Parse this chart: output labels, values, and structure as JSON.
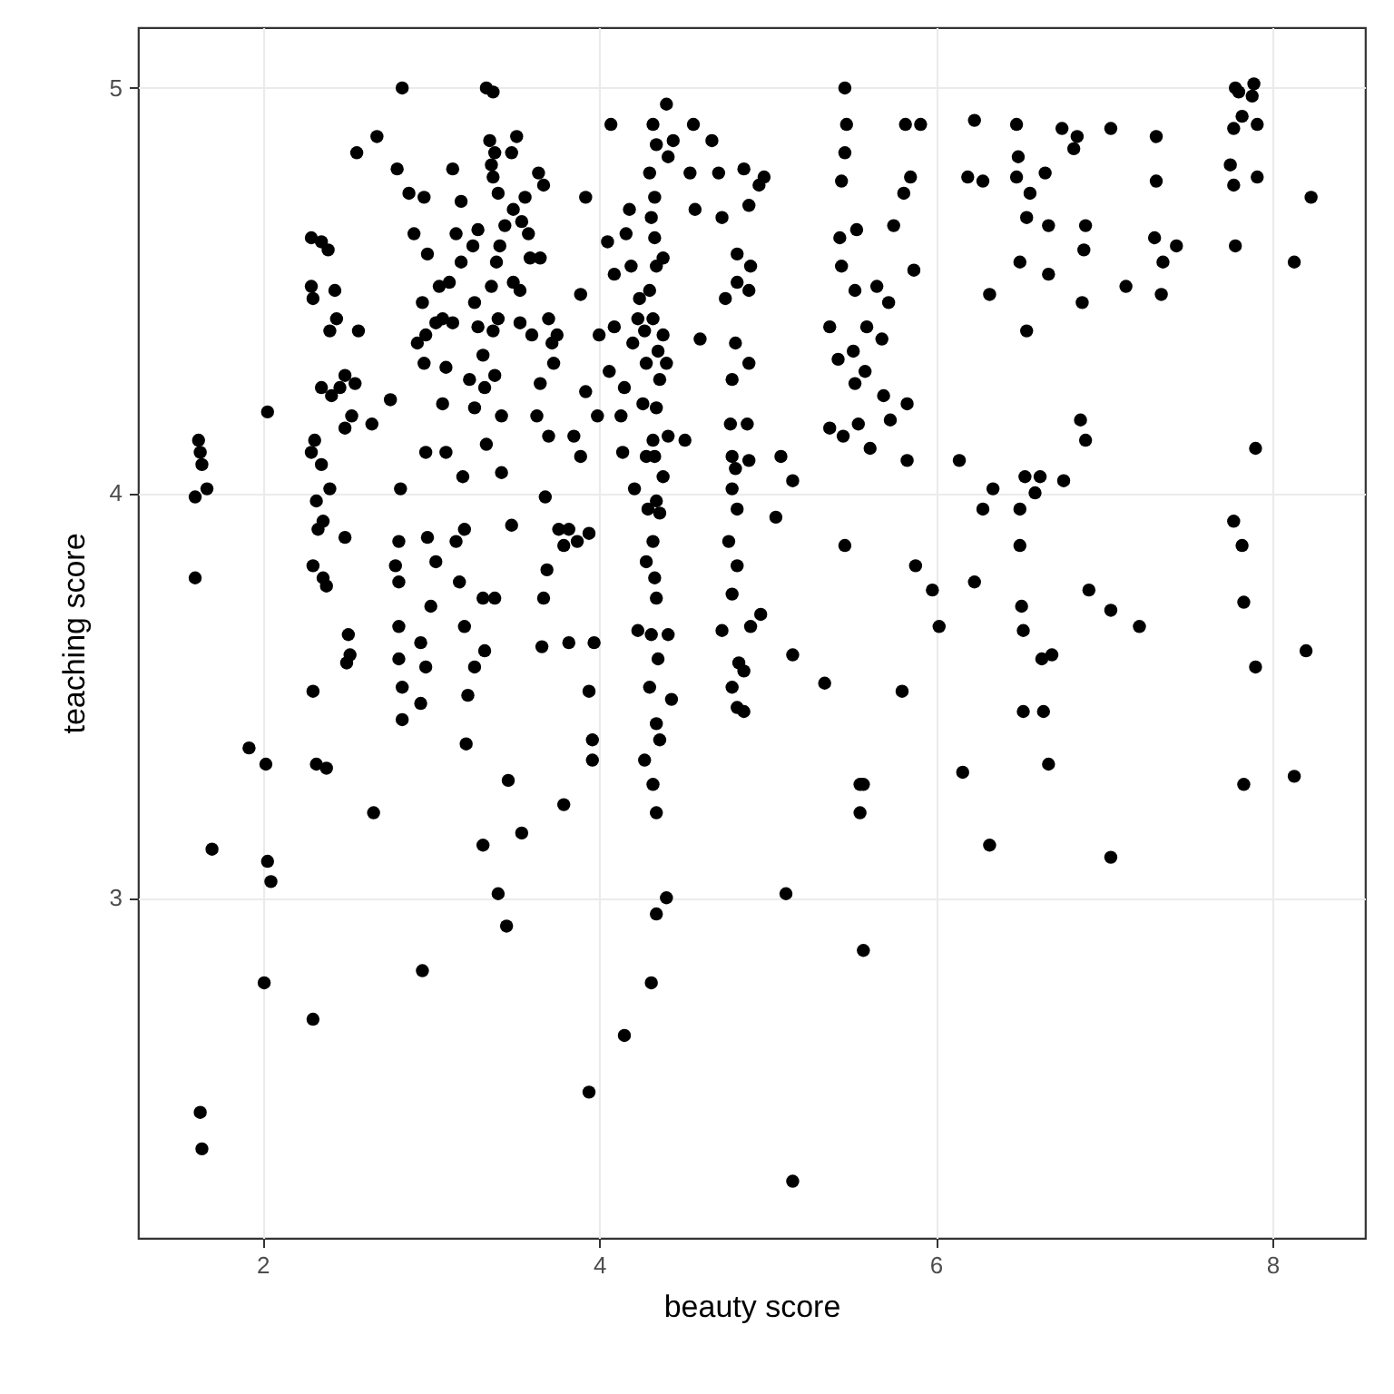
{
  "chart_data": {
    "type": "scatter",
    "xlabel": "beauty score",
    "ylabel": "teaching score",
    "xlim": [
      1.26,
      8.55
    ],
    "ylim": [
      2.16,
      5.15
    ],
    "xticks": [
      2,
      4,
      6,
      8
    ],
    "yticks": [
      3,
      4,
      5
    ],
    "grid": true,
    "marker": "circle",
    "series": [
      {
        "color": "#000000",
        "x": [
          1.62,
          1.63,
          1.64,
          1.67,
          1.6,
          1.6,
          1.7,
          1.63,
          1.64,
          1.92,
          2.02,
          2.01,
          2.03,
          2.05,
          2.03,
          2.29,
          2.35,
          2.29,
          2.3,
          2.39,
          2.35,
          2.41,
          2.31,
          2.29,
          2.35,
          2.32,
          2.4,
          2.36,
          2.33,
          2.3,
          2.36,
          2.38,
          2.3,
          2.3,
          2.32,
          2.38,
          2.4,
          2.43,
          2.44,
          2.49,
          2.46,
          2.55,
          2.53,
          2.49,
          2.49,
          2.52,
          2.5,
          2.51,
          2.56,
          2.65,
          2.66,
          2.68,
          2.76,
          2.57,
          2.79,
          2.81,
          2.81,
          2.82,
          2.81,
          2.83,
          2.83,
          2.81,
          2.83,
          2.8,
          2.9,
          2.87,
          2.92,
          2.94,
          2.95,
          2.94,
          2.97,
          2.96,
          2.98,
          2.95,
          2.97,
          2.96,
          2.97,
          2.98,
          3.0,
          3.03,
          3.03,
          3.07,
          3.07,
          3.05,
          3.09,
          3.11,
          3.13,
          3.18,
          3.15,
          3.18,
          3.13,
          3.15,
          3.17,
          3.2,
          3.22,
          3.21,
          3.09,
          3.25,
          3.26,
          3.23,
          3.26,
          3.19,
          3.2,
          3.28,
          3.31,
          3.32,
          3.33,
          3.31,
          3.32,
          3.26,
          3.31,
          3.28,
          3.33,
          3.37,
          3.35,
          3.38,
          3.36,
          3.37,
          3.4,
          3.44,
          3.41,
          3.39,
          3.36,
          3.4,
          3.37,
          3.38,
          3.42,
          3.42,
          3.38,
          3.4,
          3.45,
          3.46,
          3.48,
          3.48,
          3.49,
          3.49,
          3.51,
          3.54,
          3.53,
          3.53,
          3.54,
          3.58,
          3.59,
          3.6,
          3.65,
          3.63,
          3.56,
          3.64,
          3.67,
          3.65,
          3.69,
          3.67,
          3.7,
          3.68,
          3.66,
          3.7,
          3.72,
          3.73,
          3.76,
          3.79,
          3.75,
          3.82,
          3.82,
          3.87,
          3.79,
          3.85,
          3.89,
          3.89,
          3.92,
          3.92,
          3.94,
          3.96,
          3.96,
          3.94,
          3.99,
          3.97,
          4.0,
          4.07,
          4.05,
          4.09,
          4.09,
          4.06,
          4.15,
          4.13,
          4.14,
          4.18,
          4.16,
          4.19,
          4.2,
          4.21,
          4.24,
          4.23,
          4.27,
          4.28,
          4.23,
          4.26,
          4.28,
          4.29,
          4.28,
          4.15,
          4.27,
          3.94,
          4.32,
          4.34,
          4.3,
          4.33,
          4.31,
          4.33,
          4.34,
          4.3,
          4.32,
          4.35,
          4.36,
          4.34,
          4.32,
          4.33,
          4.34,
          4.36,
          4.32,
          4.33,
          4.34,
          4.31,
          4.35,
          4.3,
          4.34,
          4.36,
          4.32,
          4.34,
          4.34,
          4.31,
          4.4,
          4.4,
          4.41,
          4.38,
          4.38,
          4.4,
          4.41,
          4.38,
          4.41,
          4.43,
          4.44,
          4.56,
          4.54,
          4.57,
          4.51,
          4.6,
          4.67,
          4.71,
          4.73,
          4.73,
          4.75,
          4.77,
          4.79,
          4.79,
          4.82,
          4.82,
          4.81,
          4.79,
          4.78,
          4.81,
          4.82,
          4.82,
          4.79,
          4.83,
          4.79,
          4.82,
          4.86,
          4.89,
          4.9,
          4.89,
          4.89,
          4.88,
          4.89,
          4.9,
          4.86,
          4.95,
          4.98,
          4.96,
          4.86,
          5.05,
          5.08,
          5.15,
          5.11,
          5.15,
          5.15,
          5.34,
          5.37,
          5.37,
          5.42,
          5.43,
          5.44,
          5.45,
          5.46,
          5.44,
          5.46,
          5.47,
          5.46,
          5.51,
          5.52,
          5.52,
          5.53,
          5.55,
          5.55,
          5.54,
          5.57,
          5.57,
          5.58,
          5.59,
          5.61,
          5.65,
          5.68,
          5.69,
          5.72,
          5.73,
          5.75,
          5.8,
          5.81,
          5.82,
          5.83,
          5.85,
          5.83,
          5.87,
          5.88,
          5.91,
          5.98,
          6.02,
          6.14,
          6.16,
          6.19,
          6.23,
          6.23,
          6.28,
          6.32,
          6.32,
          6.34,
          6.28,
          6.49,
          6.48,
          6.48,
          6.5,
          6.5,
          6.5,
          6.51,
          6.52,
          6.52,
          6.53,
          6.54,
          6.54,
          6.56,
          6.59,
          6.62,
          6.63,
          6.64,
          6.65,
          6.67,
          6.67,
          6.69,
          6.67,
          6.75,
          6.76,
          6.82,
          6.84,
          6.87,
          6.88,
          6.89,
          6.89,
          6.86,
          6.91,
          7.04,
          7.04,
          7.04,
          7.13,
          7.21,
          7.3,
          7.31,
          7.31,
          7.35,
          7.34,
          7.43,
          7.75,
          7.77,
          7.78,
          7.8,
          7.82,
          7.77,
          7.78,
          7.77,
          7.82,
          7.83,
          7.83,
          7.89,
          7.88,
          7.91,
          7.91,
          7.9,
          7.9,
          8.13,
          8.13,
          8.2,
          8.23
        ],
        "values": [
          4.13,
          4.1,
          4.07,
          4.01,
          3.99,
          3.79,
          3.12,
          2.47,
          2.38,
          3.37,
          3.33,
          2.79,
          3.09,
          3.04,
          4.2,
          4.63,
          4.62,
          4.51,
          4.48,
          4.6,
          4.26,
          4.24,
          4.13,
          4.1,
          4.07,
          3.98,
          4.01,
          3.93,
          3.91,
          3.82,
          3.79,
          3.77,
          3.51,
          2.7,
          3.33,
          3.32,
          4.4,
          4.5,
          4.43,
          4.29,
          4.26,
          4.27,
          4.19,
          4.16,
          3.89,
          3.6,
          3.58,
          3.65,
          4.84,
          4.17,
          3.21,
          4.88,
          4.23,
          4.4,
          3.82,
          3.78,
          3.88,
          4.01,
          3.59,
          3.44,
          3.52,
          3.67,
          5.0,
          4.8,
          4.64,
          4.74,
          4.37,
          3.63,
          2.82,
          3.48,
          3.57,
          4.73,
          4.59,
          4.47,
          4.39,
          4.32,
          4.1,
          3.89,
          3.72,
          3.83,
          4.42,
          4.22,
          4.43,
          4.51,
          4.31,
          4.52,
          4.8,
          4.72,
          4.64,
          4.57,
          4.42,
          3.88,
          3.78,
          3.67,
          3.5,
          3.38,
          4.1,
          4.61,
          4.47,
          4.28,
          4.21,
          4.04,
          3.91,
          4.41,
          4.34,
          4.26,
          4.12,
          3.74,
          3.61,
          3.57,
          3.13,
          4.65,
          5.0,
          4.99,
          4.87,
          4.84,
          4.81,
          4.78,
          4.74,
          4.66,
          4.61,
          4.57,
          4.51,
          4.43,
          4.4,
          4.29,
          4.19,
          4.05,
          3.74,
          3.01,
          2.93,
          3.29,
          3.92,
          4.84,
          4.7,
          4.52,
          4.88,
          4.67,
          4.5,
          4.42,
          3.16,
          4.64,
          4.58,
          4.39,
          4.27,
          4.19,
          4.73,
          4.79,
          4.76,
          4.58,
          3.81,
          3.74,
          4.14,
          3.99,
          3.62,
          4.43,
          4.37,
          4.32,
          3.91,
          3.87,
          4.39,
          3.63,
          3.91,
          3.88,
          3.23,
          4.14,
          4.49,
          4.09,
          4.25,
          4.73,
          3.9,
          3.39,
          3.34,
          3.51,
          4.19,
          3.63,
          4.39,
          4.91,
          4.62,
          4.54,
          4.41,
          4.3,
          4.26,
          4.19,
          4.1,
          4.7,
          4.64,
          4.56,
          4.37,
          4.01,
          4.48,
          4.43,
          4.4,
          4.32,
          3.66,
          4.22,
          4.09,
          3.96,
          3.83,
          2.66,
          3.34,
          2.52,
          4.91,
          4.86,
          4.79,
          4.73,
          4.68,
          4.63,
          4.56,
          4.5,
          4.43,
          4.35,
          4.28,
          4.21,
          4.13,
          4.09,
          3.98,
          3.95,
          3.88,
          3.79,
          3.74,
          3.65,
          3.59,
          3.52,
          3.43,
          3.39,
          3.28,
          3.21,
          2.96,
          2.79,
          3.0,
          4.96,
          4.83,
          4.58,
          4.39,
          4.32,
          4.14,
          4.04,
          3.65,
          3.49,
          4.87,
          4.91,
          4.79,
          4.7,
          4.13,
          4.38,
          4.87,
          4.79,
          4.68,
          3.66,
          4.48,
          3.88,
          4.09,
          4.01,
          4.59,
          4.52,
          4.37,
          4.28,
          4.17,
          4.06,
          3.96,
          3.82,
          3.75,
          3.58,
          3.52,
          3.47,
          4.8,
          4.71,
          4.56,
          4.5,
          4.32,
          4.17,
          4.08,
          3.67,
          3.46,
          4.76,
          4.78,
          3.7,
          3.56,
          3.94,
          4.09,
          4.03,
          3.01,
          3.6,
          2.3,
          3.53,
          4.16,
          4.41,
          4.33,
          4.63,
          4.56,
          4.14,
          3.87,
          4.77,
          4.84,
          4.91,
          5.0,
          4.35,
          4.27,
          4.5,
          4.65,
          3.28,
          3.21,
          4.17,
          2.87,
          3.28,
          4.3,
          4.41,
          4.11,
          4.51,
          4.38,
          4.24,
          4.47,
          4.18,
          4.66,
          3.51,
          4.74,
          4.91,
          4.08,
          4.78,
          4.22,
          4.55,
          3.82,
          4.91,
          3.76,
          3.67,
          4.08,
          3.31,
          4.78,
          3.78,
          4.92,
          4.77,
          4.49,
          3.13,
          4.01,
          3.96,
          4.83,
          4.78,
          4.91,
          4.57,
          3.96,
          3.87,
          3.72,
          3.66,
          3.46,
          4.04,
          4.68,
          4.4,
          4.74,
          4.0,
          4.04,
          3.59,
          3.46,
          4.79,
          4.66,
          4.54,
          3.6,
          3.33,
          4.9,
          4.03,
          4.85,
          4.88,
          4.47,
          4.6,
          4.66,
          4.13,
          4.18,
          3.76,
          4.9,
          3.1,
          3.71,
          4.51,
          3.67,
          4.63,
          4.88,
          4.77,
          4.57,
          4.49,
          4.61,
          4.81,
          4.9,
          5.0,
          4.99,
          4.93,
          4.76,
          4.61,
          3.93,
          3.87,
          3.73,
          3.28,
          5.01,
          4.98,
          4.91,
          4.78,
          4.11,
          3.57,
          4.57,
          3.3,
          3.61,
          4.73
        ]
      }
    ]
  }
}
